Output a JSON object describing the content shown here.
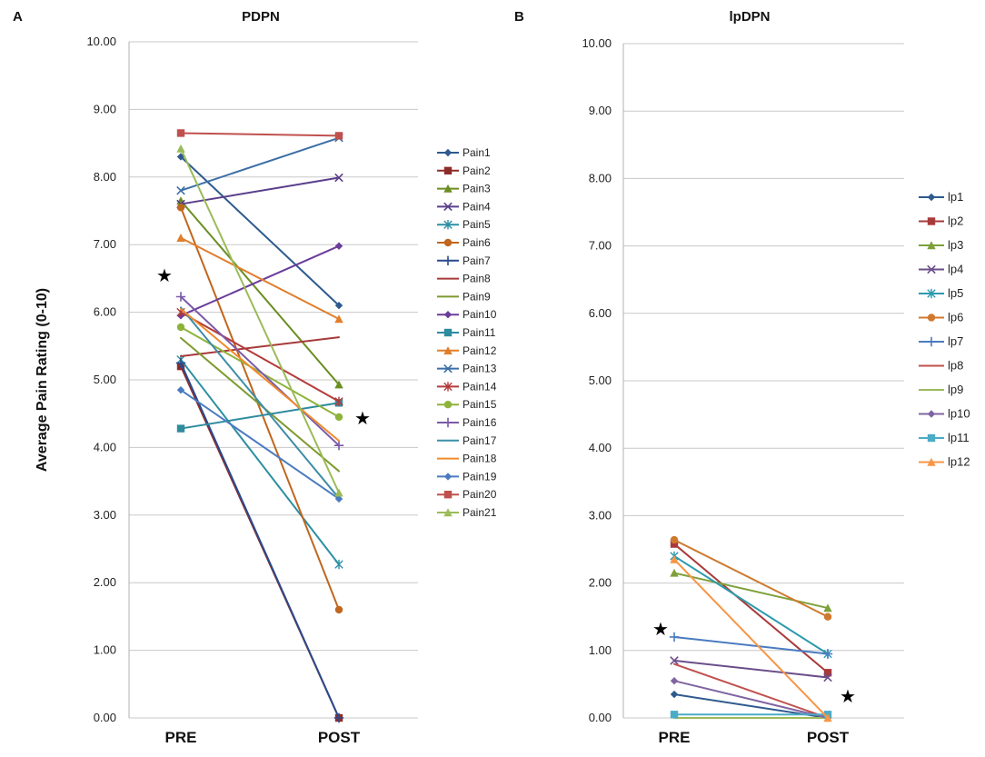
{
  "figure": {
    "panel_a_letter": "A",
    "panel_b_letter": "B"
  },
  "chart_data": [
    {
      "type": "line",
      "title": "PDPN",
      "xlabel": "",
      "ylabel": "Average Pain Rating (0-10)",
      "categories": [
        "PRE",
        "POST"
      ],
      "ylim": [
        0,
        10
      ],
      "yticks": [
        "0.00",
        "1.00",
        "2.00",
        "3.00",
        "4.00",
        "5.00",
        "6.00",
        "7.00",
        "8.00",
        "9.00",
        "10.00"
      ],
      "grid": true,
      "legend": "right",
      "annotations": [
        "★",
        "★"
      ],
      "series": [
        {
          "name": "Pain1",
          "values": [
            8.3,
            6.1
          ],
          "color": "#2E5A8E",
          "marker": "diamond"
        },
        {
          "name": "Pain2",
          "values": [
            5.2,
            0.0
          ],
          "color": "#8E2C2A",
          "marker": "square"
        },
        {
          "name": "Pain3",
          "values": [
            7.65,
            4.93
          ],
          "color": "#6B8E23",
          "marker": "triangle"
        },
        {
          "name": "Pain4",
          "values": [
            7.6,
            7.99
          ],
          "color": "#5B3F8A",
          "marker": "x"
        },
        {
          "name": "Pain5",
          "values": [
            5.3,
            2.27
          ],
          "color": "#2C8FA3",
          "marker": "star"
        },
        {
          "name": "Pain6",
          "values": [
            7.55,
            1.6
          ],
          "color": "#C0661E",
          "marker": "circle"
        },
        {
          "name": "Pain7",
          "values": [
            5.25,
            0.0
          ],
          "color": "#2A4A8E",
          "marker": "plus"
        },
        {
          "name": "Pain8",
          "values": [
            5.35,
            5.63
          ],
          "color": "#A83A3A",
          "marker": "none"
        },
        {
          "name": "Pain9",
          "values": [
            5.62,
            3.65
          ],
          "color": "#7E9A2E",
          "marker": "none"
        },
        {
          "name": "Pain10",
          "values": [
            5.95,
            6.98
          ],
          "color": "#6A3D9A",
          "marker": "diamond"
        },
        {
          "name": "Pain11",
          "values": [
            4.28,
            4.66
          ],
          "color": "#2E8C9E",
          "marker": "square"
        },
        {
          "name": "Pain12",
          "values": [
            7.1,
            5.9
          ],
          "color": "#E07E2C",
          "marker": "triangle"
        },
        {
          "name": "Pain13",
          "values": [
            7.8,
            8.58
          ],
          "color": "#3B6EA8",
          "marker": "x"
        },
        {
          "name": "Pain14",
          "values": [
            6.0,
            4.68
          ],
          "color": "#B43A3A",
          "marker": "star"
        },
        {
          "name": "Pain15",
          "values": [
            5.78,
            4.45
          ],
          "color": "#8DB33A",
          "marker": "circle"
        },
        {
          "name": "Pain16",
          "values": [
            6.23,
            4.03
          ],
          "color": "#7A5AA8",
          "marker": "plus"
        },
        {
          "name": "Pain17",
          "values": [
            6.07,
            3.25
          ],
          "color": "#3D8DA8",
          "marker": "none"
        },
        {
          "name": "Pain18",
          "values": [
            6.05,
            4.1
          ],
          "color": "#F08A2C",
          "marker": "none"
        },
        {
          "name": "Pain19",
          "values": [
            4.85,
            3.24
          ],
          "color": "#4A7BC0",
          "marker": "diamond"
        },
        {
          "name": "Pain20",
          "values": [
            8.65,
            8.61
          ],
          "color": "#C0504D",
          "marker": "square"
        },
        {
          "name": "Pain21",
          "values": [
            8.42,
            3.33
          ],
          "color": "#9BBB59",
          "marker": "triangle"
        }
      ]
    },
    {
      "type": "line",
      "title": "lpDPN",
      "xlabel": "",
      "ylabel": "",
      "categories": [
        "PRE",
        "POST"
      ],
      "ylim": [
        0,
        10
      ],
      "yticks": [
        "0.00",
        "1.00",
        "2.00",
        "3.00",
        "4.00",
        "5.00",
        "6.00",
        "7.00",
        "8.00",
        "9.00",
        "10.00"
      ],
      "grid": true,
      "legend": "right",
      "annotations": [
        "★",
        "★"
      ],
      "series": [
        {
          "name": "lp1",
          "values": [
            0.35,
            0.0
          ],
          "color": "#2E5A8E",
          "marker": "diamond"
        },
        {
          "name": "lp2",
          "values": [
            2.58,
            0.67
          ],
          "color": "#A83A3A",
          "marker": "square"
        },
        {
          "name": "lp3",
          "values": [
            2.15,
            1.63
          ],
          "color": "#7EA03A",
          "marker": "triangle"
        },
        {
          "name": "lp4",
          "values": [
            0.85,
            0.6
          ],
          "color": "#6A4E8A",
          "marker": "x"
        },
        {
          "name": "lp5",
          "values": [
            2.4,
            0.95
          ],
          "color": "#2C9AAE",
          "marker": "star"
        },
        {
          "name": "lp6",
          "values": [
            2.64,
            1.5
          ],
          "color": "#D0782E",
          "marker": "circle"
        },
        {
          "name": "lp7",
          "values": [
            1.2,
            0.95
          ],
          "color": "#4A7BC0",
          "marker": "plus"
        },
        {
          "name": "lp8",
          "values": [
            0.8,
            0.0
          ],
          "color": "#C0504D",
          "marker": "none"
        },
        {
          "name": "lp9",
          "values": [
            0.0,
            0.0
          ],
          "color": "#9BBB59",
          "marker": "none"
        },
        {
          "name": "lp10",
          "values": [
            0.55,
            0.0
          ],
          "color": "#8064A2",
          "marker": "diamond"
        },
        {
          "name": "lp11",
          "values": [
            0.05,
            0.05
          ],
          "color": "#4BACC6",
          "marker": "square"
        },
        {
          "name": "lp12",
          "values": [
            2.35,
            0.0
          ],
          "color": "#F79646",
          "marker": "triangle"
        }
      ]
    }
  ]
}
